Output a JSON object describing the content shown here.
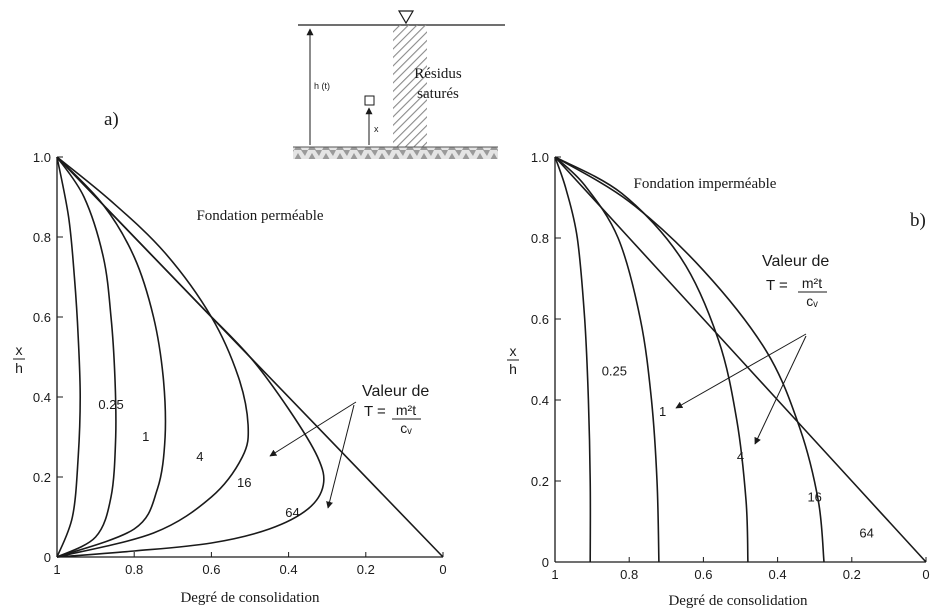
{
  "figure": {
    "panel_a_label": "a)",
    "panel_b_label": "b)"
  },
  "inset": {
    "height_label": "h (t)",
    "x_label": "x",
    "material_line1": "Résidus",
    "material_line2": "saturés"
  },
  "colors": {
    "ink": "#1a1a1a",
    "hatch": "#8a8a8a",
    "ground": "#b8b8b8"
  },
  "chart_data": [
    {
      "type": "line",
      "panel": "a",
      "annotation": "Fondation perméable",
      "xlabel": "Degré de consolidation",
      "ylabel": "x/h",
      "ylabel_num": "x",
      "ylabel_den": "h",
      "xlim": [
        1,
        0
      ],
      "ylim": [
        0,
        1
      ],
      "x_reversed": true,
      "xticks": [
        1,
        0.8,
        0.6,
        0.4,
        0.2,
        0
      ],
      "xtick_labels": [
        "1",
        "0.8",
        "0.6",
        "0.4",
        "0.2",
        "0"
      ],
      "yticks": [
        0,
        0.2,
        0.4,
        0.6,
        0.8,
        1.0
      ],
      "ytick_labels": [
        "0",
        "0.2",
        "0.4",
        "0.6",
        "0.8",
        "1.0"
      ],
      "legend_title": "Valeur de",
      "formula_lhs": "T = ",
      "formula_num": "m²t",
      "formula_den": "cᵥ",
      "series": [
        {
          "name": "0.25",
          "label_at": [
            0.86,
            0.37
          ],
          "points": [
            [
              1,
              0
            ],
            [
              0.96,
              0.1
            ],
            [
              0.945,
              0.25
            ],
            [
              0.94,
              0.4
            ],
            [
              0.945,
              0.55
            ],
            [
              0.955,
              0.7
            ],
            [
              0.97,
              0.85
            ],
            [
              1,
              1
            ]
          ]
        },
        {
          "name": "1",
          "label_at": [
            0.77,
            0.29
          ],
          "points": [
            [
              1,
              0
            ],
            [
              0.9,
              0.05
            ],
            [
              0.86,
              0.15
            ],
            [
              0.848,
              0.3
            ],
            [
              0.85,
              0.45
            ],
            [
              0.86,
              0.6
            ],
            [
              0.88,
              0.75
            ],
            [
              0.93,
              0.9
            ],
            [
              1,
              1
            ]
          ]
        },
        {
          "name": "4",
          "label_at": [
            0.63,
            0.24
          ],
          "points": [
            [
              1,
              0
            ],
            [
              0.8,
              0.07
            ],
            [
              0.74,
              0.17
            ],
            [
              0.72,
              0.3
            ],
            [
              0.725,
              0.45
            ],
            [
              0.75,
              0.6
            ],
            [
              0.8,
              0.75
            ],
            [
              0.88,
              0.88
            ],
            [
              1,
              1
            ]
          ]
        },
        {
          "name": "16",
          "label_at": [
            0.515,
            0.175
          ],
          "points": [
            [
              1,
              0
            ],
            [
              0.75,
              0.06
            ],
            [
              0.6,
              0.15
            ],
            [
              0.52,
              0.25
            ],
            [
              0.505,
              0.33
            ],
            [
              0.53,
              0.45
            ],
            [
              0.6,
              0.6
            ],
            [
              0.72,
              0.76
            ],
            [
              0.86,
              0.89
            ],
            [
              1,
              1
            ]
          ]
        },
        {
          "name": "64",
          "label_at": [
            0.39,
            0.1
          ],
          "points": [
            [
              1,
              0
            ],
            [
              0.8,
              0.015
            ],
            [
              0.6,
              0.035
            ],
            [
              0.45,
              0.07
            ],
            [
              0.35,
              0.12
            ],
            [
              0.31,
              0.18
            ],
            [
              0.325,
              0.25
            ],
            [
              0.4,
              0.37
            ],
            [
              0.5,
              0.5
            ],
            [
              0.625,
              0.625
            ],
            [
              0.75,
              0.75
            ],
            [
              0.875,
              0.875
            ],
            [
              1,
              1
            ]
          ]
        },
        {
          "name": "",
          "label_at": null,
          "points": [
            [
              1,
              1
            ],
            [
              0,
              0
            ]
          ]
        }
      ]
    },
    {
      "type": "line",
      "panel": "b",
      "annotation": "Fondation imperméable",
      "xlabel": "Degré de consolidation",
      "ylabel": "x/h",
      "ylabel_num": "x",
      "ylabel_den": "h",
      "xlim": [
        1,
        0
      ],
      "ylim": [
        0,
        1
      ],
      "x_reversed": true,
      "xticks": [
        1,
        0.8,
        0.6,
        0.4,
        0.2,
        0
      ],
      "xtick_labels": [
        "1",
        "0.8",
        "0.6",
        "0.4",
        "0.2",
        "0"
      ],
      "yticks": [
        0,
        0.2,
        0.4,
        0.6,
        0.8,
        1.0
      ],
      "ytick_labels": [
        "0",
        "0.2",
        "0.4",
        "0.6",
        "0.8",
        "1.0"
      ],
      "legend_title": "Valeur de",
      "formula_lhs": "T = ",
      "formula_num": "m²t",
      "formula_den": "cᵥ",
      "series": [
        {
          "name": "0.25",
          "label_at": [
            0.84,
            0.46
          ],
          "points": [
            [
              0.905,
              0
            ],
            [
              0.905,
              0.2
            ],
            [
              0.91,
              0.4
            ],
            [
              0.92,
              0.6
            ],
            [
              0.94,
              0.8
            ],
            [
              0.97,
              0.92
            ],
            [
              1,
              1
            ]
          ]
        },
        {
          "name": "1",
          "label_at": [
            0.71,
            0.36
          ],
          "points": [
            [
              0.72,
              0
            ],
            [
              0.725,
              0.2
            ],
            [
              0.74,
              0.4
            ],
            [
              0.77,
              0.6
            ],
            [
              0.83,
              0.8
            ],
            [
              0.92,
              0.93
            ],
            [
              1,
              1
            ]
          ]
        },
        {
          "name": "4",
          "label_at": [
            0.5,
            0.25
          ],
          "points": [
            [
              0.48,
              0
            ],
            [
              0.485,
              0.15
            ],
            [
              0.51,
              0.35
            ],
            [
              0.56,
              0.55
            ],
            [
              0.66,
              0.75
            ],
            [
              0.82,
              0.91
            ],
            [
              1,
              1
            ]
          ]
        },
        {
          "name": "16",
          "label_at": [
            0.3,
            0.15
          ],
          "points": [
            [
              0.275,
              0
            ],
            [
              0.29,
              0.15
            ],
            [
              0.34,
              0.33
            ],
            [
              0.43,
              0.52
            ],
            [
              0.6,
              0.72
            ],
            [
              0.8,
              0.89
            ],
            [
              1,
              1
            ]
          ]
        },
        {
          "name": "64",
          "label_at": [
            0.16,
            0.06
          ],
          "points": [
            [
              0,
              0
            ],
            [
              0.2,
              0.2
            ],
            [
              0.4,
              0.4
            ],
            [
              0.6,
              0.6
            ],
            [
              0.8,
              0.8
            ],
            [
              1,
              1
            ]
          ]
        }
      ]
    }
  ]
}
